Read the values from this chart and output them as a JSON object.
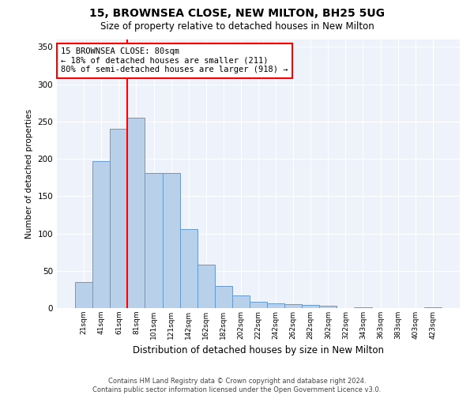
{
  "title1": "15, BROWNSEA CLOSE, NEW MILTON, BH25 5UG",
  "title2": "Size of property relative to detached houses in New Milton",
  "xlabel": "Distribution of detached houses by size in New Milton",
  "ylabel": "Number of detached properties",
  "categories": [
    "21sqm",
    "41sqm",
    "61sqm",
    "81sqm",
    "101sqm",
    "121sqm",
    "142sqm",
    "162sqm",
    "182sqm",
    "202sqm",
    "222sqm",
    "242sqm",
    "262sqm",
    "282sqm",
    "302sqm",
    "322sqm",
    "343sqm",
    "363sqm",
    "383sqm",
    "403sqm",
    "423sqm"
  ],
  "values": [
    35,
    197,
    240,
    255,
    181,
    181,
    106,
    58,
    30,
    17,
    8,
    6,
    5,
    4,
    3,
    0,
    1,
    0,
    0,
    0,
    1
  ],
  "bar_color": "#b8d0ea",
  "bar_edge_color": "#6699cc",
  "annotation_title": "15 BROWNSEA CLOSE: 80sqm",
  "annotation_line1": "← 18% of detached houses are smaller (211)",
  "annotation_line2": "80% of semi-detached houses are larger (918) →",
  "annotation_box_color": "white",
  "annotation_box_edge": "red",
  "footer1": "Contains HM Land Registry data © Crown copyright and database right 2024.",
  "footer2": "Contains public sector information licensed under the Open Government Licence v3.0.",
  "bg_color": "#eef2fb",
  "ylim": [
    0,
    360
  ],
  "yticks": [
    0,
    50,
    100,
    150,
    200,
    250,
    300,
    350
  ],
  "red_line_index": 3
}
